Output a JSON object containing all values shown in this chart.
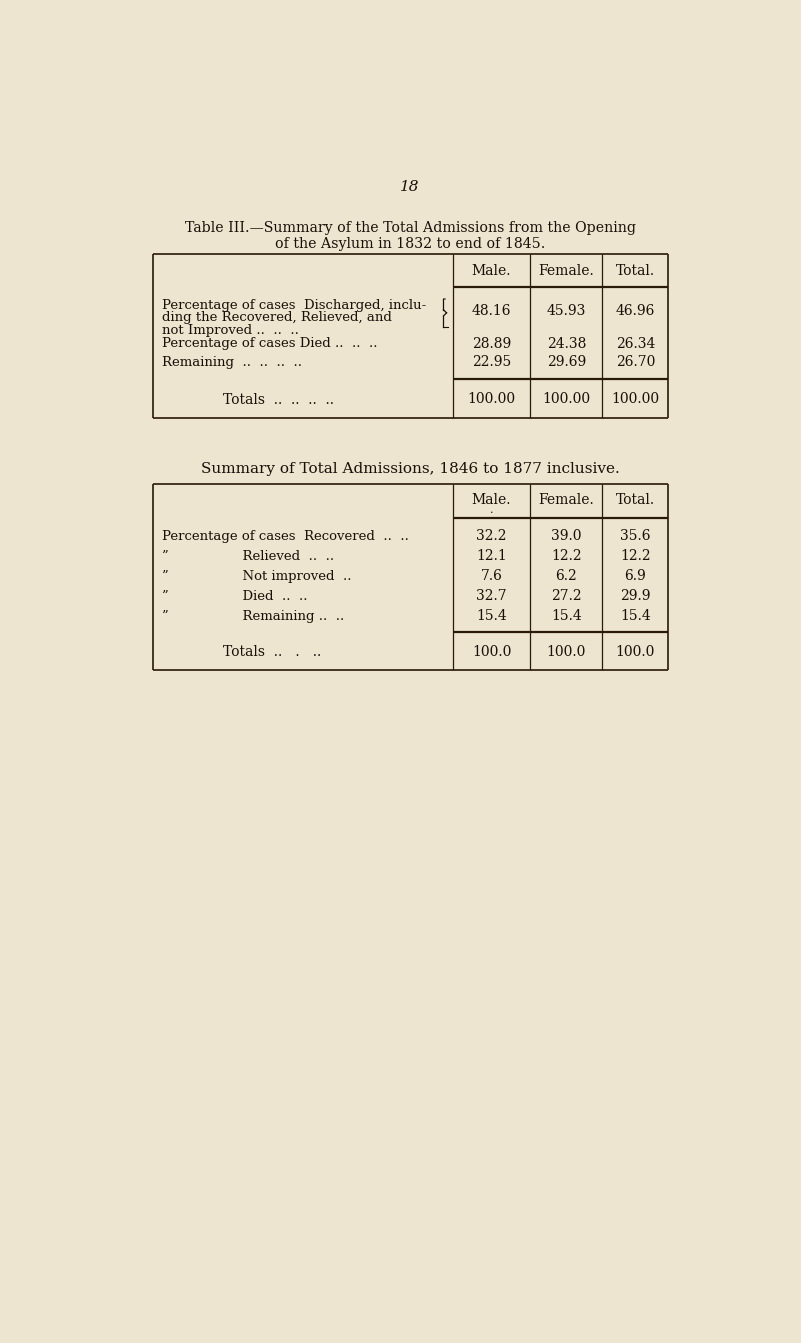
{
  "bg_color": "#ede5d0",
  "page_number": "18",
  "title1_line1": "Table III.—Summary of the Total Admissions from the Opening",
  "title1_line2": "of the Asylum in 1832 to end of 1845.",
  "title2": "Summary of Total Admissions, 1846 to 1877 inclusive.",
  "table1_headers": [
    "Male.",
    "Female.",
    "Total."
  ],
  "table1_row1_lines": [
    "Percentage of cases  Discharged, inclu-",
    "ding the Recovered, Relieved, and",
    "not Improved ..  ..  .."
  ],
  "table1_row1_values": [
    "48.16",
    "45.93",
    "46.96"
  ],
  "table1_row2_label": "Percentage of cases Died ..  ..  ..",
  "table1_row2_values": [
    "28.89",
    "24.38",
    "26.34"
  ],
  "table1_row3_label": "Remaining  ..  ..  ..  ..",
  "table1_row3_values": [
    "22.95",
    "29.69",
    "26.70"
  ],
  "table1_totals_label": "Totals  ..  ..  ..  ..",
  "table1_totals_values": [
    "100.00",
    "100.00",
    "100.00"
  ],
  "table2_headers": [
    "Male.",
    "Female.",
    "Total."
  ],
  "table2_rows": [
    [
      "Percentage of cases  Recovered  ..  ..",
      "32.2",
      "39.0",
      "35.6"
    ],
    [
      "”           Relieved  ..  ..",
      "12.1",
      "12.2",
      "12.2"
    ],
    [
      "”           Not improved  ..",
      "7.6",
      "6.2",
      "6.9"
    ],
    [
      "”           Died  ..  ..",
      "32.7",
      "27.2",
      "29.9"
    ],
    [
      "”           Remaining ..  ..",
      "15.4",
      "15.4",
      "15.4"
    ]
  ],
  "table2_totals_label": "Totals  ..   .   ..",
  "table2_totals_values": [
    "100.0",
    "100.0",
    "100.0"
  ],
  "text_color": "#1a1008",
  "line_color": "#2a1a08"
}
